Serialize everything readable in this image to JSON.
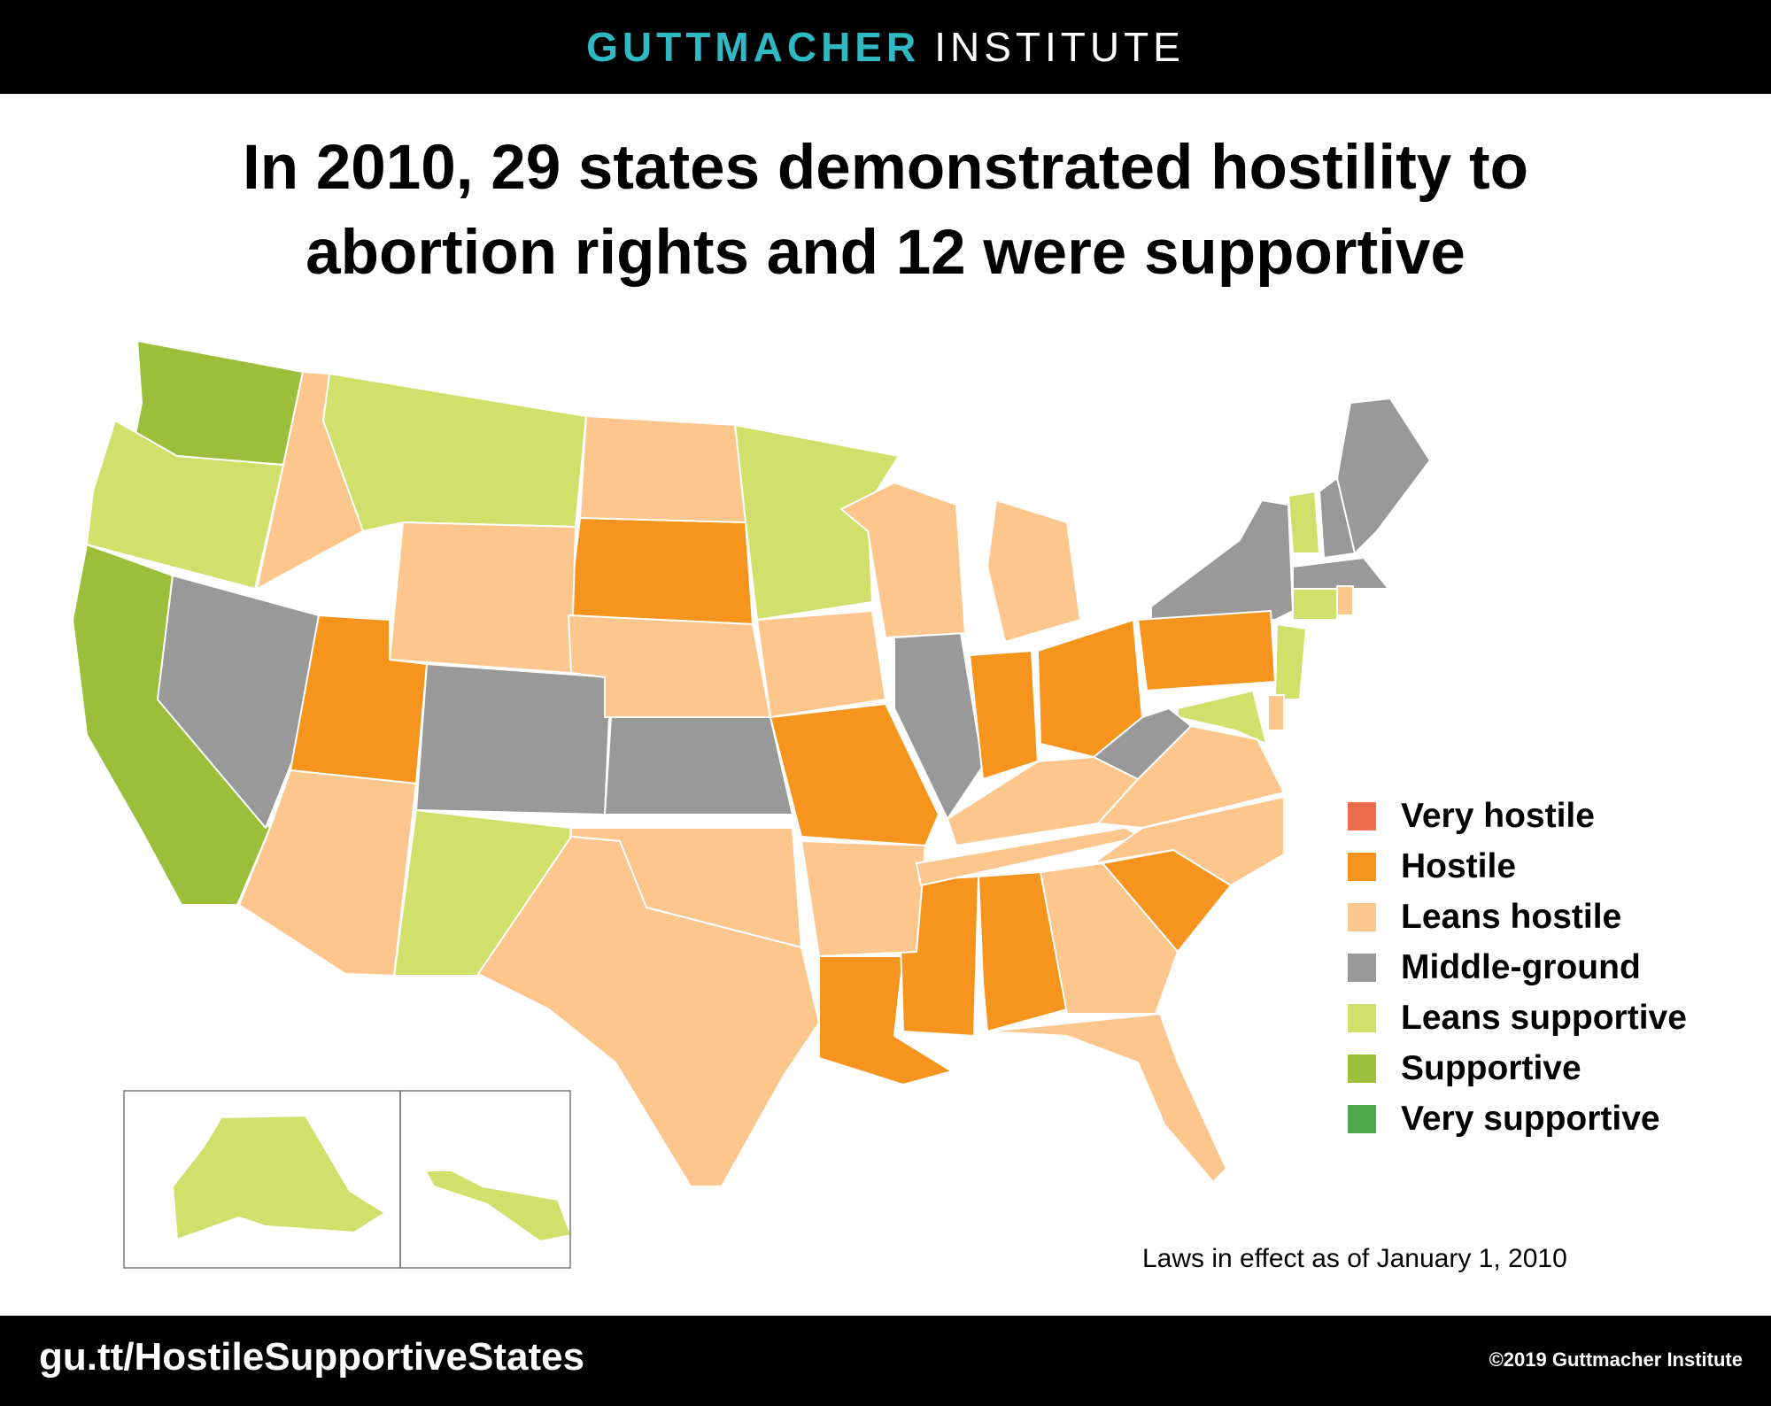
{
  "header": {
    "brand_primary": "GUTTMACHER",
    "brand_secondary": "INSTITUTE"
  },
  "title": {
    "line1": "In 2010, 29 states demonstrated hostility to",
    "line2": "abortion rights and 12 were supportive"
  },
  "legend": [
    {
      "label": "Very hostile",
      "color": "#ef6b4a"
    },
    {
      "label": "Hostile",
      "color": "#f7941d"
    },
    {
      "label": "Leans hostile",
      "color": "#fdc68c"
    },
    {
      "label": "Middle-ground",
      "color": "#999999"
    },
    {
      "label": "Leans supportive",
      "color": "#d0e06a"
    },
    {
      "label": "Supportive",
      "color": "#9bbf3b"
    },
    {
      "label": "Very supportive",
      "color": "#4aa84a"
    }
  ],
  "map_data": {
    "state_categories": {
      "WA": "Supportive",
      "CA": "Supportive",
      "OR": "Leans supportive",
      "MT": "Leans supportive",
      "MN": "Leans supportive",
      "NM": "Leans supportive",
      "VT": "Leans supportive",
      "CT": "Leans supportive",
      "NJ": "Leans supportive",
      "MD": "Leans supportive",
      "AK": "Leans supportive",
      "HI": "Leans supportive",
      "NV": "Middle-ground",
      "CO": "Middle-ground",
      "KS": "Middle-ground",
      "IL": "Middle-ground",
      "WV": "Middle-ground",
      "NY": "Middle-ground",
      "NH": "Middle-ground",
      "ME": "Middle-ground",
      "MA": "Middle-ground",
      "UT": "Hostile",
      "SD": "Hostile",
      "MO": "Hostile",
      "IN": "Hostile",
      "OH": "Hostile",
      "PA": "Hostile",
      "LA": "Hostile",
      "MS": "Hostile",
      "AL": "Hostile",
      "SC": "Hostile",
      "ID": "Leans hostile",
      "WY": "Leans hostile",
      "ND": "Leans hostile",
      "NE": "Leans hostile",
      "IA": "Leans hostile",
      "WI": "Leans hostile",
      "MI": "Leans hostile",
      "AZ": "Leans hostile",
      "OK": "Leans hostile",
      "TX": "Leans hostile",
      "AR": "Leans hostile",
      "KY": "Leans hostile",
      "TN": "Leans hostile",
      "VA": "Leans hostile",
      "NC": "Leans hostile",
      "GA": "Leans hostile",
      "FL": "Leans hostile",
      "DE": "Leans hostile",
      "RI": "Leans hostile"
    }
  },
  "footnote": "Laws in effect as of January 1, 2010",
  "footer": {
    "url": "gu.tt/HostileSupportiveStates",
    "copyright": "©2019 Guttmacher Institute"
  }
}
